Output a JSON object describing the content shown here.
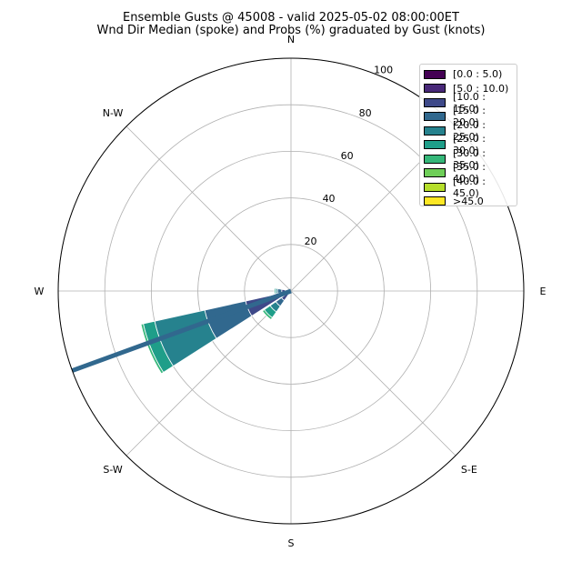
{
  "title": "Ensemble Gusts @ 45008 - valid 2025-05-02 08:00:00ET",
  "subtitle": "Wnd Dir Median (spoke) and Probs (%) graduated by Gust (knots)",
  "chart_data": {
    "type": "windrose",
    "directions": [
      "N",
      "E",
      "S",
      "W",
      "N-W",
      "S-W",
      "S-E"
    ],
    "radial_ticks": [
      "20",
      "40",
      "60",
      "80",
      "100"
    ],
    "radial_max": 100,
    "grid": true,
    "legend_placement": "top-right",
    "legend": [
      {
        "label": "[0.0 : 5.0)",
        "color": "#440154"
      },
      {
        "label": "[5.0 : 10.0)",
        "color": "#482878"
      },
      {
        "label": "[10.0 : 15.0)",
        "color": "#3e4989"
      },
      {
        "label": "[15.0 : 20.0)",
        "color": "#31688e"
      },
      {
        "label": "[20.0 : 25.0)",
        "color": "#26828e"
      },
      {
        "label": "[25.0 : 30.0)",
        "color": "#1f9e89"
      },
      {
        "label": "[30.0 : 35.0)",
        "color": "#35b779"
      },
      {
        "label": "[35.0 : 40.0)",
        "color": "#6ece58"
      },
      {
        "label": "[40.0 : 45.0)",
        "color": "#b5de2b"
      },
      {
        "label": ">45.0",
        "color": "#fde725"
      }
    ],
    "median_spoke": {
      "direction_deg": 250,
      "value": 100,
      "color": "#31688e"
    },
    "petals": [
      {
        "direction_deg": 270,
        "bins": [
          1,
          2.5,
          4,
          5.8,
          6.5,
          7.1
        ]
      },
      {
        "direction_deg": 247.5,
        "bins": [
          1,
          2,
          20,
          38,
          60,
          65,
          66
        ]
      },
      {
        "direction_deg": 225,
        "bins": [
          0.5,
          1.5,
          5,
          8,
          11,
          14,
          15
        ]
      }
    ]
  }
}
